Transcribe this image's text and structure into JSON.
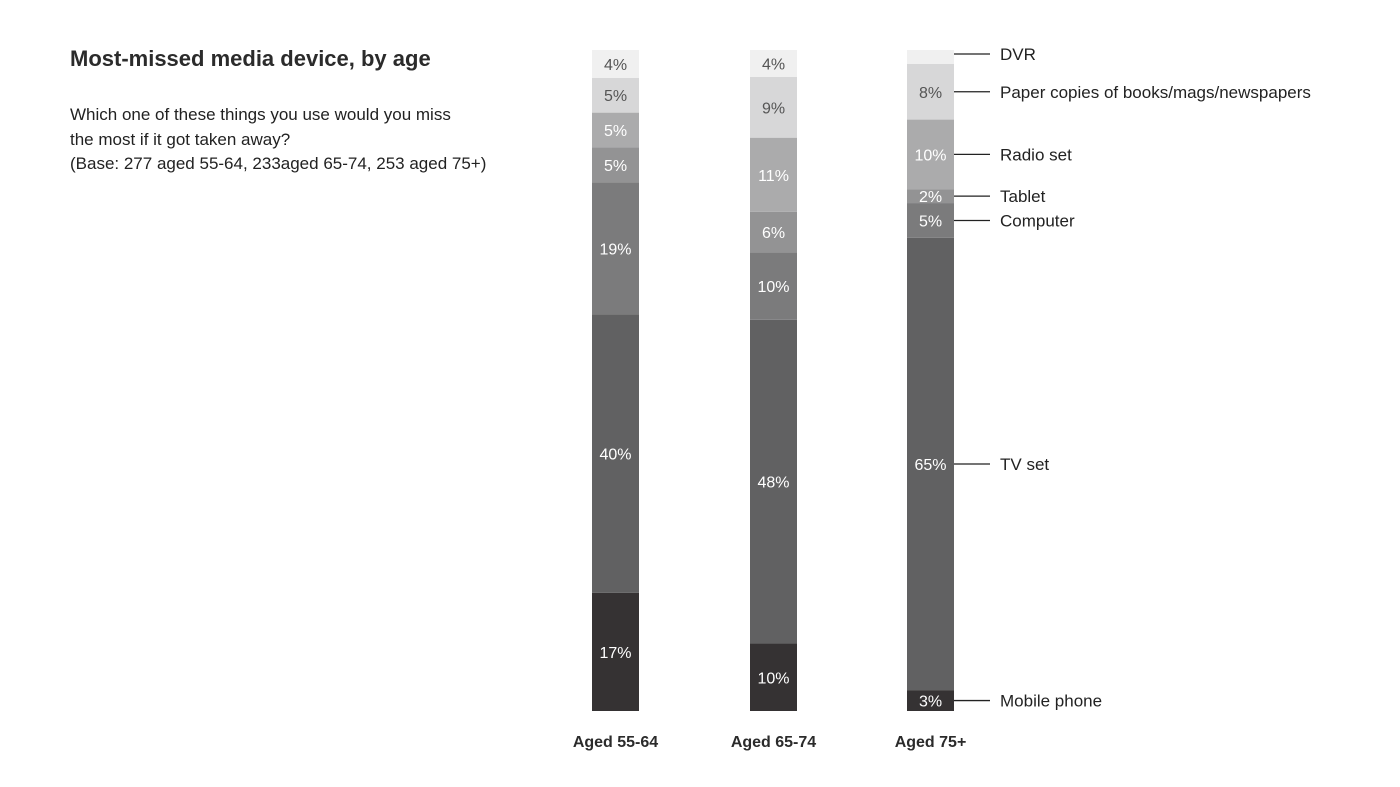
{
  "title": "Most-missed media device, by age",
  "subtitle": [
    "Which one of these things you use would you miss",
    "the most if it got taken away?",
    "(Base: 277 aged 55-64, 233aged 65-74, 253 aged 75+)"
  ],
  "chart_data": {
    "type": "bar",
    "stacked": true,
    "orientation": "vertical",
    "unit": "%",
    "categories": [
      "Aged 55-64",
      "Aged 65-74",
      "Aged 75+"
    ],
    "series": [
      {
        "name": "Mobile phone",
        "values": [
          17,
          10,
          3
        ],
        "labels": [
          "17%",
          "10%",
          "3%"
        ],
        "color": "#353233",
        "label_color": "#ffffff"
      },
      {
        "name": "TV set",
        "values": [
          40,
          48,
          65
        ],
        "labels": [
          "40%",
          "48%",
          "65%"
        ],
        "color": "#616162",
        "label_color": "#ffffff"
      },
      {
        "name": "Computer",
        "values": [
          19,
          10,
          5
        ],
        "labels": [
          "19%",
          "10%",
          "5%"
        ],
        "color": "#7b7b7c",
        "label_color": "#ffffff"
      },
      {
        "name": "Tablet",
        "values": [
          5,
          6,
          2
        ],
        "labels": [
          "5%",
          "6%",
          "2%"
        ],
        "color": "#939394",
        "label_color": "#ffffff"
      },
      {
        "name": "Radio set",
        "values": [
          5,
          11,
          10
        ],
        "labels": [
          "5%",
          "11%",
          "10%"
        ],
        "color": "#ababac",
        "label_color": "#ffffff"
      },
      {
        "name": "Paper copies of books/mags/newspapers",
        "values": [
          5,
          9,
          8
        ],
        "labels": [
          "5%",
          "9%",
          "8%"
        ],
        "color": "#d7d7d8",
        "label_color": "#555555"
      },
      {
        "name": "DVR",
        "values": [
          4,
          4,
          2
        ],
        "labels": [
          "4%",
          "4%",
          ""
        ],
        "color": "#f0f0f0",
        "label_color": "#555555"
      }
    ],
    "legend": "right, labels attached to last bar"
  }
}
